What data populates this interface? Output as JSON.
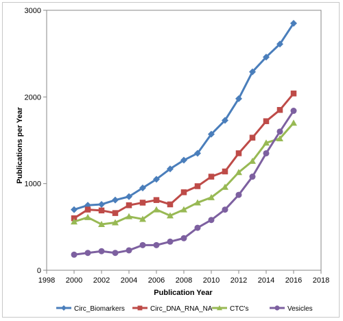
{
  "chart_data": {
    "type": "line",
    "title": "",
    "xlabel": "Publication Year",
    "ylabel": "Publications per Year",
    "xlim": [
      1998,
      2018
    ],
    "ylim": [
      0,
      3000
    ],
    "xticks": [
      "1998",
      "2000",
      "2002",
      "2004",
      "2006",
      "2008",
      "2010",
      "2012",
      "2014",
      "2016",
      "2018"
    ],
    "yticks": [
      "0",
      "1000",
      "2000",
      "3000"
    ],
    "grid": false,
    "legend_position": "bottom",
    "x": [
      2000,
      2001,
      2002,
      2003,
      2004,
      2005,
      2006,
      2007,
      2008,
      2009,
      2010,
      2011,
      2012,
      2013,
      2014,
      2015,
      2016
    ],
    "series": [
      {
        "name": "Circ_Biomarkers",
        "color": "#4a7ebb",
        "marker": "diamond",
        "values": [
          700,
          750,
          760,
          810,
          850,
          950,
          1050,
          1170,
          1270,
          1350,
          1570,
          1730,
          1980,
          2290,
          2460,
          2610,
          2850
        ]
      },
      {
        "name": "Circ_DNA_RNA_NA",
        "color": "#be4b48",
        "marker": "square",
        "values": [
          600,
          700,
          690,
          660,
          750,
          780,
          810,
          760,
          900,
          970,
          1080,
          1140,
          1350,
          1530,
          1720,
          1850,
          2040
        ]
      },
      {
        "name": "CTC's",
        "color": "#98b954",
        "marker": "triangle",
        "values": [
          560,
          610,
          530,
          550,
          620,
          590,
          700,
          630,
          700,
          780,
          840,
          960,
          1130,
          1260,
          1470,
          1520,
          1700
        ]
      },
      {
        "name": "Vesicles",
        "color": "#7d60a0",
        "marker": "circle",
        "values": [
          180,
          200,
          220,
          200,
          230,
          290,
          290,
          330,
          370,
          490,
          580,
          700,
          870,
          1080,
          1350,
          1600,
          1840
        ]
      }
    ]
  }
}
